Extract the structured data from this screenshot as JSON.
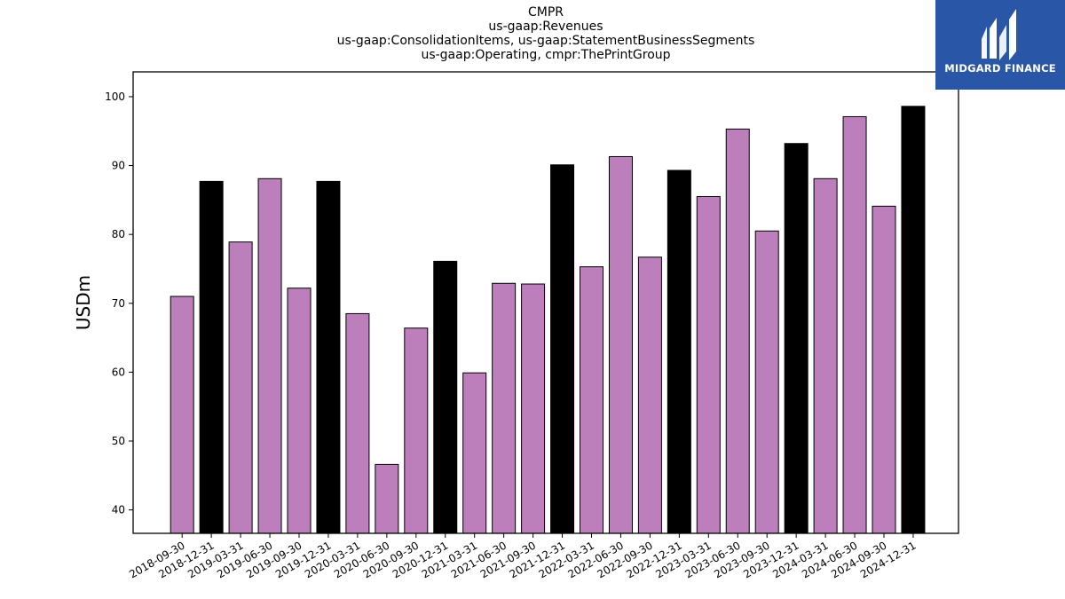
{
  "title_lines": [
    "CMPR",
    "us-gaap:Revenues",
    "us-gaap:ConsolidationItems, us-gaap:StatementBusinessSegments",
    "us-gaap:Operating, cmpr:ThePrintGroup"
  ],
  "logo": {
    "text": "MIDGARD FINANCE",
    "background": "#2a56a8"
  },
  "colors": {
    "quarter_bar": "#bc7fbc",
    "year_end_bar": "#000000"
  },
  "chart_data": {
    "type": "bar",
    "ylabel": "USDm",
    "xlabel": "",
    "ylim": [
      36.6,
      103.6
    ],
    "yticks": [
      40,
      50,
      60,
      70,
      80,
      90,
      100
    ],
    "grid": false,
    "categories": [
      "2018-09-30",
      "2018-12-31",
      "2019-03-31",
      "2019-06-30",
      "2019-09-30",
      "2019-12-31",
      "2020-03-31",
      "2020-06-30",
      "2020-09-30",
      "2020-12-31",
      "2021-03-31",
      "2021-06-30",
      "2021-09-30",
      "2021-12-31",
      "2022-03-31",
      "2022-06-30",
      "2022-09-30",
      "2022-12-31",
      "2023-03-31",
      "2023-06-30",
      "2023-09-30",
      "2023-12-31",
      "2024-03-31",
      "2024-06-30",
      "2024-09-30",
      "2024-12-31"
    ],
    "values": [
      71.0,
      87.7,
      78.9,
      88.1,
      72.2,
      87.7,
      68.5,
      46.6,
      66.4,
      76.1,
      59.9,
      72.9,
      72.8,
      90.1,
      75.3,
      91.3,
      76.7,
      89.3,
      85.5,
      95.3,
      80.5,
      93.2,
      88.1,
      97.1,
      84.1,
      98.6
    ]
  }
}
